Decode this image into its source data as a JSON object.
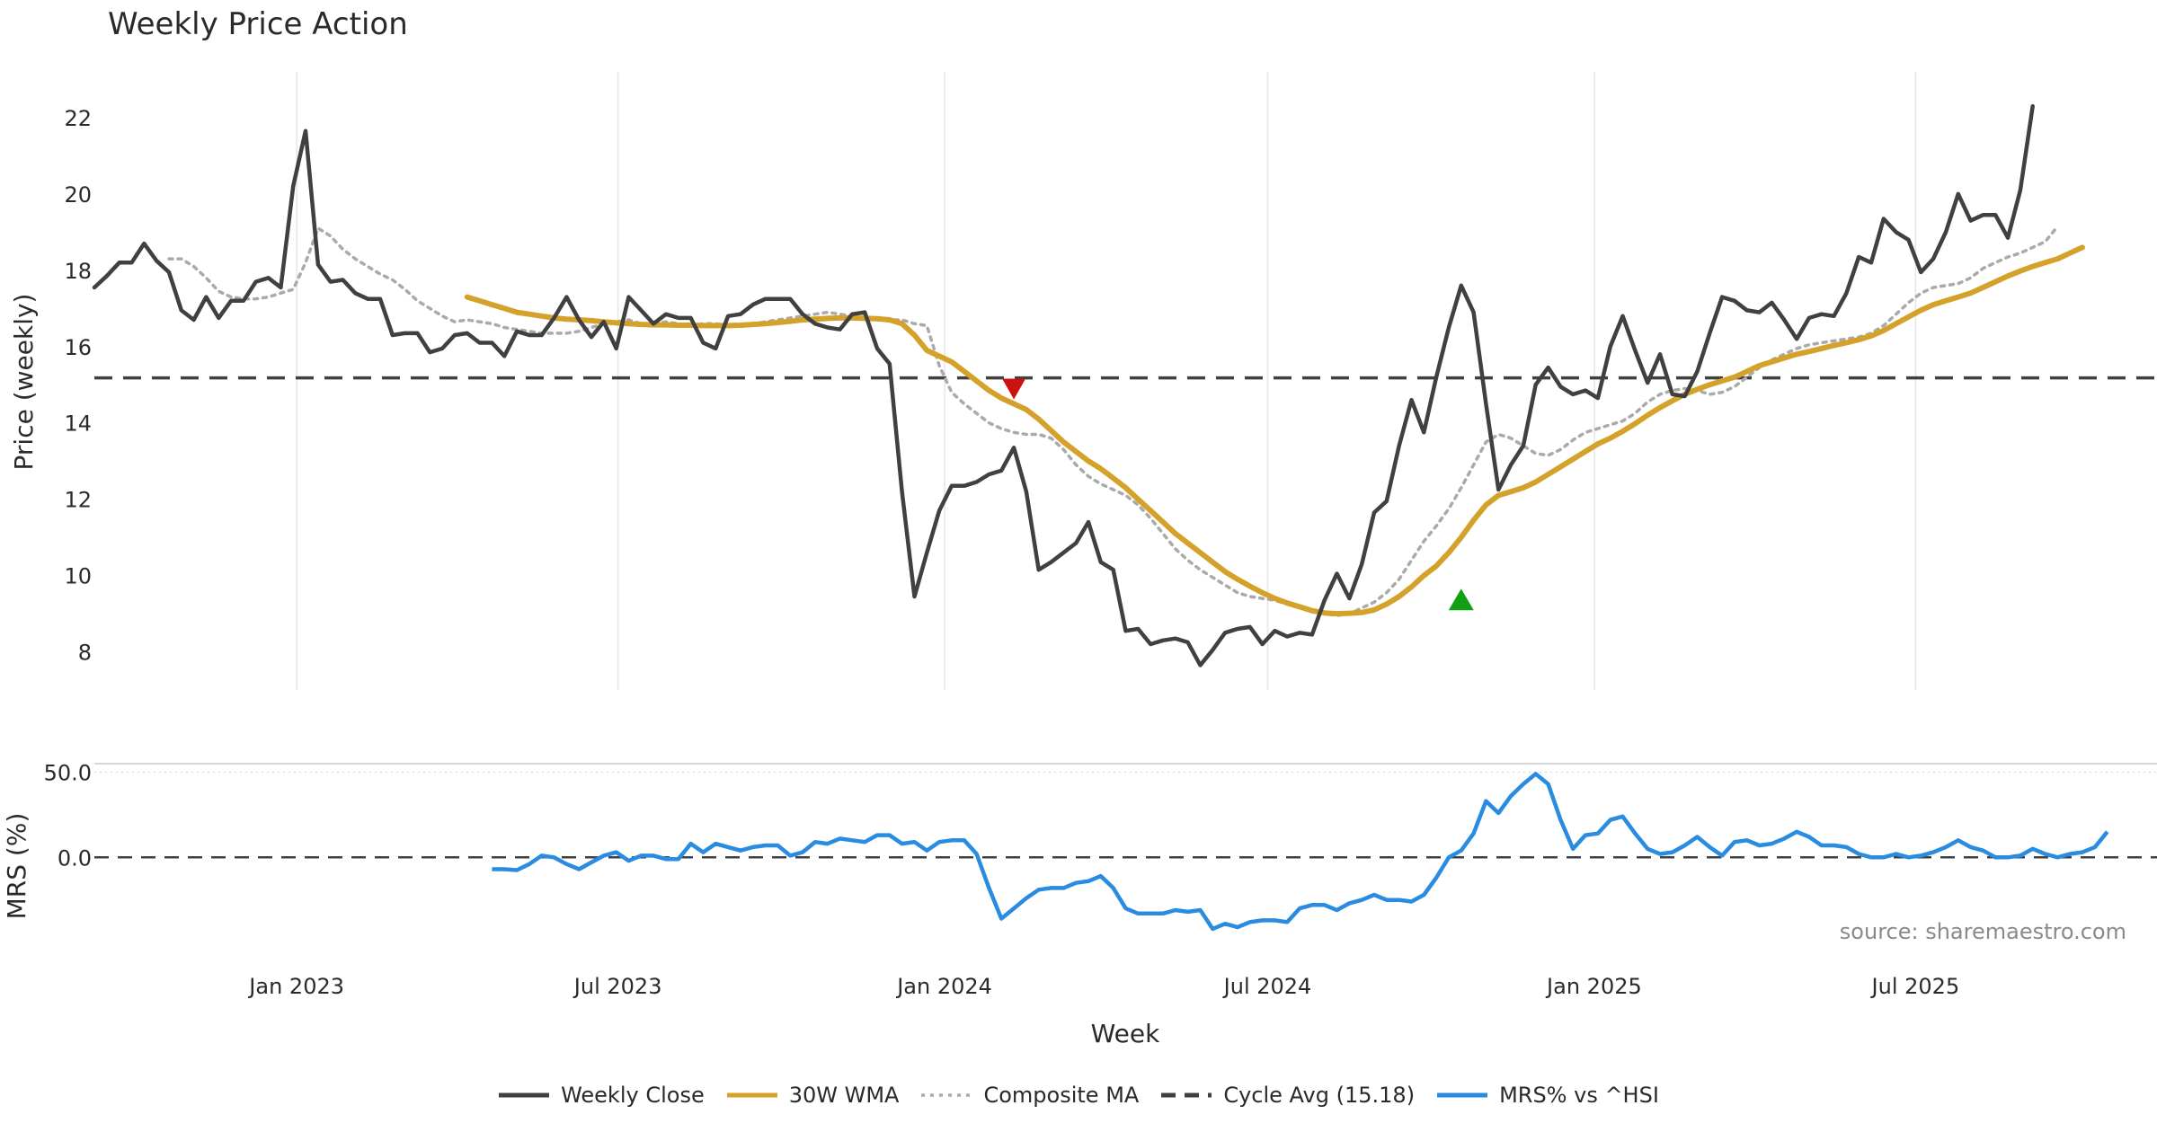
{
  "chart_data": {
    "type": "line",
    "title": "Weekly Price Action",
    "xlabel": "Week",
    "source": "source: sharemaestro.com",
    "x_ticks": [
      "Jan 2023",
      "Jul 2023",
      "Jan 2024",
      "Jul 2024",
      "Jan 2025",
      "Jul 2025"
    ],
    "x_range": [
      "2022-09-09",
      "2025-11-14"
    ],
    "colors": {
      "close": "#404040",
      "wma": "#d4a22a",
      "composite": "#aaaaaa",
      "cycle": "#404040",
      "mrs": "#2a8ce0",
      "buy": "#12a012",
      "sell": "#cc1111"
    },
    "price_panel": {
      "ylabel": "Price (weekly)",
      "ylim": [
        7,
        23.2
      ],
      "yticks": [
        8,
        10,
        12,
        14,
        16,
        18,
        20,
        22
      ],
      "cycle_avg": 15.18,
      "series": [
        {
          "name": "Weekly Close",
          "start": "2022-09-09",
          "values": [
            17.55,
            17.85,
            18.2,
            18.2,
            18.7,
            18.25,
            17.95,
            16.95,
            16.7,
            17.3,
            16.75,
            17.2,
            17.2,
            17.7,
            17.8,
            17.55,
            20.2,
            21.65,
            18.15,
            17.7,
            17.75,
            17.4,
            17.25,
            17.25,
            16.3,
            16.35,
            16.35,
            15.85,
            15.95,
            16.3,
            16.35,
            16.1,
            16.1,
            15.75,
            16.4,
            16.3,
            16.3,
            16.75,
            17.3,
            16.7,
            16.25,
            16.65,
            15.95,
            17.3,
            16.95,
            16.6,
            16.85,
            16.75,
            16.75,
            16.1,
            15.95,
            16.8,
            16.85,
            17.1,
            17.25,
            17.25,
            17.25,
            16.85,
            16.6,
            16.5,
            16.45,
            16.85,
            16.9,
            15.95,
            15.55,
            12.2,
            9.45,
            10.6,
            11.7,
            12.35,
            12.35,
            12.45,
            12.65,
            12.75,
            13.35,
            12.2,
            10.15,
            10.35,
            10.6,
            10.85,
            11.4,
            10.35,
            10.15,
            8.55,
            8.6,
            8.2,
            8.3,
            8.35,
            8.25,
            7.65,
            8.05,
            8.5,
            8.6,
            8.65,
            8.2,
            8.55,
            8.4,
            8.5,
            8.45,
            9.35,
            10.05,
            9.4,
            10.3,
            11.65,
            11.95,
            13.4,
            14.6,
            13.75,
            15.2,
            16.5,
            17.6,
            16.9,
            14.5,
            12.25,
            12.9,
            13.4,
            15.0,
            15.45,
            14.95,
            14.75,
            14.85,
            14.65,
            16.0,
            16.8,
            15.9,
            15.05,
            15.8,
            14.75,
            14.7,
            15.35,
            16.35,
            17.3,
            17.2,
            16.95,
            16.9,
            17.15,
            16.7,
            16.2,
            16.75,
            16.85,
            16.8,
            17.4,
            18.35,
            18.2,
            19.35,
            19.0,
            18.8,
            17.95,
            18.3,
            19.0,
            20.0,
            19.3,
            19.45,
            19.45,
            18.85,
            20.1,
            22.3
          ]
        },
        {
          "name": "30W WMA",
          "start": "2023-04-07",
          "values": [
            17.3,
            17.2,
            17.1,
            17.0,
            16.9,
            16.85,
            16.8,
            16.75,
            16.72,
            16.7,
            16.68,
            16.65,
            16.62,
            16.6,
            16.58,
            16.57,
            16.57,
            16.56,
            16.56,
            16.55,
            16.55,
            16.55,
            16.56,
            16.58,
            16.6,
            16.63,
            16.66,
            16.7,
            16.72,
            16.74,
            16.75,
            16.75,
            16.74,
            16.73,
            16.7,
            16.6,
            16.3,
            15.9,
            15.75,
            15.6,
            15.35,
            15.1,
            14.85,
            14.65,
            14.5,
            14.35,
            14.1,
            13.8,
            13.5,
            13.25,
            13.0,
            12.8,
            12.55,
            12.3,
            12.0,
            11.7,
            11.4,
            11.1,
            10.85,
            10.6,
            10.35,
            10.1,
            9.9,
            9.72,
            9.55,
            9.4,
            9.28,
            9.18,
            9.08,
            9.02,
            9.0,
            9.01,
            9.03,
            9.1,
            9.25,
            9.45,
            9.7,
            10.0,
            10.25,
            10.6,
            11.0,
            11.45,
            11.85,
            12.1,
            12.2,
            12.3,
            12.45,
            12.65,
            12.85,
            13.05,
            13.25,
            13.45,
            13.6,
            13.78,
            13.98,
            14.2,
            14.4,
            14.58,
            14.75,
            14.88,
            15.0,
            15.1,
            15.2,
            15.35,
            15.5,
            15.6,
            15.7,
            15.8,
            15.87,
            15.95,
            16.03,
            16.1,
            16.18,
            16.28,
            16.42,
            16.6,
            16.78,
            16.95,
            17.1,
            17.2,
            17.3,
            17.4,
            17.55,
            17.7,
            17.85,
            17.98,
            18.1,
            18.2,
            18.3,
            18.45,
            18.6
          ]
        },
        {
          "name": "Composite MA",
          "start": "2022-10-21",
          "values": [
            18.3,
            18.3,
            18.1,
            17.8,
            17.45,
            17.3,
            17.25,
            17.25,
            17.3,
            17.4,
            17.5,
            18.2,
            19.1,
            18.9,
            18.55,
            18.3,
            18.1,
            17.9,
            17.75,
            17.5,
            17.2,
            17.0,
            16.8,
            16.65,
            16.7,
            16.65,
            16.6,
            16.5,
            16.45,
            16.4,
            16.35,
            16.35,
            16.35,
            16.4,
            16.5,
            16.6,
            16.65,
            16.7,
            16.6,
            16.6,
            16.65,
            16.6,
            16.55,
            16.6,
            16.6,
            16.55,
            16.55,
            16.6,
            16.65,
            16.7,
            16.75,
            16.8,
            16.85,
            16.9,
            16.85,
            16.8,
            16.75,
            16.7,
            16.7,
            16.7,
            16.6,
            16.55,
            15.5,
            14.8,
            14.5,
            14.25,
            14.0,
            13.85,
            13.75,
            13.7,
            13.7,
            13.6,
            13.3,
            12.9,
            12.6,
            12.4,
            12.25,
            12.1,
            11.85,
            11.5,
            11.1,
            10.7,
            10.4,
            10.15,
            9.95,
            9.75,
            9.55,
            9.45,
            9.4,
            9.35,
            9.25,
            9.15,
            9.05,
            9.0,
            8.95,
            9.0,
            9.15,
            9.3,
            9.55,
            9.9,
            10.4,
            10.9,
            11.3,
            11.75,
            12.3,
            12.9,
            13.5,
            13.7,
            13.6,
            13.4,
            13.2,
            13.15,
            13.3,
            13.55,
            13.75,
            13.85,
            13.95,
            14.05,
            14.25,
            14.55,
            14.75,
            14.85,
            14.9,
            14.85,
            14.75,
            14.8,
            14.95,
            15.2,
            15.45,
            15.65,
            15.8,
            15.95,
            16.05,
            16.1,
            16.15,
            16.2,
            16.25,
            16.35,
            16.55,
            16.85,
            17.15,
            17.4,
            17.55,
            17.6,
            17.65,
            17.8,
            18.05,
            18.2,
            18.35,
            18.45,
            18.6,
            18.75,
            19.15
          ]
        }
      ]
    },
    "markers": [
      {
        "type": "sell",
        "x": "2024-02-09",
        "y": 14.9
      },
      {
        "type": "buy",
        "x": "2024-10-18",
        "y": 9.35
      }
    ],
    "mrs_panel": {
      "ylabel": "MRS (%)",
      "ylim": [
        -60,
        55
      ],
      "yticks": [
        0.0,
        50.0
      ],
      "ytick_labels": [
        "0.0",
        "50.0"
      ],
      "series": [
        {
          "name": "MRS% vs ^HSI",
          "start": "2023-04-21",
          "values": [
            -7,
            -7,
            -7.5,
            -4,
            1,
            0,
            -4,
            -7,
            -3,
            1,
            3,
            -2,
            1,
            1,
            -1,
            -1,
            8,
            3,
            8,
            6,
            4,
            6,
            7,
            7,
            1,
            3,
            9,
            8,
            11,
            10,
            9,
            13,
            13,
            8,
            9,
            4,
            9,
            10,
            10,
            2,
            -18,
            -36,
            -30,
            -24,
            -19,
            -18,
            -18,
            -15,
            -14,
            -11,
            -18,
            -30,
            -33,
            -33,
            -33,
            -31,
            -32,
            -31,
            -42,
            -39,
            -41,
            -38,
            -37,
            -37,
            -38,
            -30,
            -28,
            -28,
            -31,
            -27,
            -25,
            -22,
            -25,
            -25,
            -26,
            -22,
            -12,
            0,
            4,
            14,
            33,
            26,
            36,
            43,
            49,
            43,
            22,
            5,
            13,
            14,
            22,
            24,
            14,
            5,
            2,
            3,
            7,
            12,
            6,
            1,
            9,
            10,
            7,
            8,
            11,
            15,
            12,
            7,
            7,
            6,
            2,
            0,
            0,
            2,
            0,
            1,
            3,
            6,
            10,
            6,
            4,
            0,
            0,
            1,
            5,
            2,
            0,
            2,
            3,
            6,
            15
          ]
        }
      ]
    },
    "legend": [
      {
        "label": "Weekly Close",
        "style": "solid",
        "color": "#404040"
      },
      {
        "label": "30W WMA",
        "style": "solid",
        "color": "#d4a22a"
      },
      {
        "label": "Composite MA",
        "style": "dotted",
        "color": "#aaaaaa"
      },
      {
        "label": "Cycle Avg (15.18)",
        "style": "dashed",
        "color": "#404040"
      },
      {
        "label": "MRS% vs ^HSI",
        "style": "solid",
        "color": "#2a8ce0"
      }
    ]
  }
}
